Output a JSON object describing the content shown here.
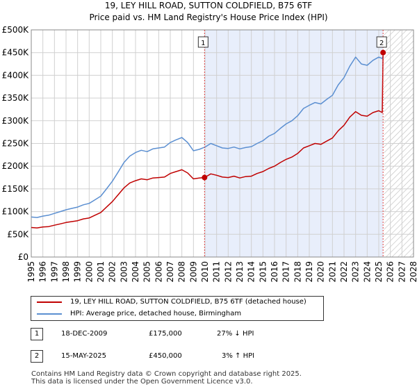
{
  "title": {
    "line1": "19, LEY HILL ROAD, SUTTON COLDFIELD, B75 6TF",
    "line2": "Price paid vs. HM Land Registry's House Price Index (HPI)"
  },
  "colors": {
    "property": "#c00000",
    "hpi": "#5b8fd1",
    "shade": "#e8eefb",
    "marker_line": "#e04040",
    "grid": "#d0d0d0"
  },
  "chart_data": {
    "type": "line",
    "title": "19, LEY HILL ROAD, SUTTON COLDFIELD, B75 6TF — Price paid vs. HM Land Registry's House Price Index (HPI)",
    "xlabel": "",
    "ylabel": "",
    "xlim": [
      1995,
      2028
    ],
    "ylim": [
      0,
      500000
    ],
    "grid": true,
    "y_ticks": [
      0,
      50000,
      100000,
      150000,
      200000,
      250000,
      300000,
      350000,
      400000,
      450000,
      500000
    ],
    "y_tick_labels": [
      "£0",
      "£50K",
      "£100K",
      "£150K",
      "£200K",
      "£250K",
      "£300K",
      "£350K",
      "£400K",
      "£450K",
      "£500K"
    ],
    "x_ticks": [
      "1995",
      "1996",
      "1997",
      "1998",
      "1999",
      "2000",
      "2001",
      "2002",
      "2003",
      "2004",
      "2005",
      "2006",
      "2007",
      "2008",
      "2009",
      "2010",
      "2011",
      "2012",
      "2013",
      "2014",
      "2015",
      "2016",
      "2017",
      "2018",
      "2019",
      "2020",
      "2021",
      "2022",
      "2023",
      "2024",
      "2025",
      "2026",
      "2027",
      "2028"
    ],
    "shaded_period": [
      2009.96,
      2025.37
    ],
    "hatched_from": 2025.45,
    "series": [
      {
        "name": "19, LEY HILL ROAD, SUTTON COLDFIELD, B75 6TF (detached house)",
        "color": "#c00000",
        "x": [
          1995.0,
          1995.5,
          1996.0,
          1996.5,
          1997.0,
          1997.5,
          1998.0,
          1998.5,
          1999.0,
          1999.5,
          2000.0,
          2000.5,
          2001.0,
          2001.5,
          2002.0,
          2002.5,
          2003.0,
          2003.5,
          2004.0,
          2004.5,
          2005.0,
          2005.5,
          2006.0,
          2006.5,
          2007.0,
          2007.5,
          2008.0,
          2008.5,
          2009.0,
          2009.5,
          2009.96,
          2010.5,
          2011.0,
          2011.5,
          2012.0,
          2012.5,
          2013.0,
          2013.5,
          2014.0,
          2014.5,
          2015.0,
          2015.5,
          2016.0,
          2016.5,
          2017.0,
          2017.5,
          2018.0,
          2018.5,
          2019.0,
          2019.5,
          2020.0,
          2020.5,
          2021.0,
          2021.5,
          2022.0,
          2022.5,
          2023.0,
          2023.5,
          2024.0,
          2024.5,
          2025.0,
          2025.3,
          2025.37
        ],
        "values": [
          65000,
          64000,
          66000,
          67000,
          70000,
          73000,
          76000,
          78000,
          80000,
          84000,
          86000,
          92000,
          98000,
          110000,
          122000,
          137000,
          152000,
          163000,
          168000,
          172000,
          170000,
          174000,
          175000,
          176000,
          184000,
          188000,
          192000,
          185000,
          172000,
          174000,
          175000,
          183000,
          180000,
          176000,
          175000,
          178000,
          174000,
          177000,
          178000,
          184000,
          188000,
          195000,
          200000,
          208000,
          215000,
          220000,
          228000,
          240000,
          245000,
          250000,
          248000,
          255000,
          262000,
          278000,
          290000,
          308000,
          320000,
          312000,
          310000,
          318000,
          322000,
          318000,
          450000
        ]
      },
      {
        "name": "HPI: Average price, detached house, Birmingham",
        "color": "#5b8fd1",
        "x": [
          1995.0,
          1995.5,
          1996.0,
          1996.5,
          1997.0,
          1997.5,
          1998.0,
          1998.5,
          1999.0,
          1999.5,
          2000.0,
          2000.5,
          2001.0,
          2001.5,
          2002.0,
          2002.5,
          2003.0,
          2003.5,
          2004.0,
          2004.5,
          2005.0,
          2005.5,
          2006.0,
          2006.5,
          2007.0,
          2007.5,
          2008.0,
          2008.5,
          2009.0,
          2009.5,
          2010.0,
          2010.5,
          2011.0,
          2011.5,
          2012.0,
          2012.5,
          2013.0,
          2013.5,
          2014.0,
          2014.5,
          2015.0,
          2015.5,
          2016.0,
          2016.5,
          2017.0,
          2017.5,
          2018.0,
          2018.5,
          2019.0,
          2019.5,
          2020.0,
          2020.5,
          2021.0,
          2021.5,
          2022.0,
          2022.5,
          2023.0,
          2023.5,
          2024.0,
          2024.5,
          2025.0,
          2025.3,
          2025.37
        ],
        "values": [
          88000,
          87000,
          90000,
          92000,
          96000,
          100000,
          104000,
          107000,
          110000,
          115000,
          118000,
          126000,
          134000,
          150000,
          167000,
          187000,
          208000,
          222000,
          230000,
          235000,
          232000,
          238000,
          240000,
          242000,
          252000,
          258000,
          263000,
          252000,
          234000,
          237000,
          242000,
          250000,
          245000,
          240000,
          239000,
          242000,
          238000,
          241000,
          243000,
          250000,
          256000,
          266000,
          272000,
          283000,
          293000,
          300000,
          311000,
          327000,
          334000,
          340000,
          337000,
          347000,
          356000,
          379000,
          395000,
          420000,
          440000,
          425000,
          422000,
          433000,
          440000,
          437000,
          442000
        ]
      }
    ],
    "annotations": [
      {
        "label": "1",
        "x": 2009.96,
        "y": 175000
      },
      {
        "label": "2",
        "x": 2025.37,
        "y": 450000
      }
    ]
  },
  "legend": {
    "property_label": "19, LEY HILL ROAD, SUTTON COLDFIELD, B75 6TF (detached house)",
    "hpi_label": "HPI: Average price, detached house, Birmingham"
  },
  "sales": [
    {
      "num": "1",
      "date": "18-DEC-2009",
      "price": "£175,000",
      "hpi": "27% ↓ HPI"
    },
    {
      "num": "2",
      "date": "15-MAY-2025",
      "price": "£450,000",
      "hpi": "3% ↑ HPI"
    }
  ],
  "footer": {
    "line1": "Contains HM Land Registry data © Crown copyright and database right 2025.",
    "line2": "This data is licensed under the Open Government Licence v3.0."
  }
}
